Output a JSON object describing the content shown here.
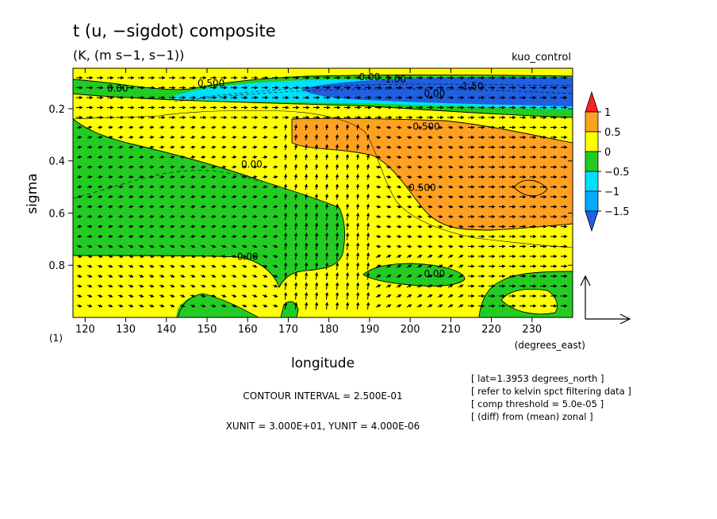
{
  "chart_data": {
    "type": "heatmap",
    "title": "t (u, −sigdot) composite",
    "subtitle": "(K, (m s−1, s−1))",
    "run_label": "kuo_control",
    "xlabel": "longitude",
    "xunits": "(degrees_east)",
    "ylabel": "sigma",
    "yunits": "(1)",
    "xlim": [
      117,
      240
    ],
    "ylim": [
      1.0,
      0.045
    ],
    "x_ticks": [
      120,
      130,
      140,
      150,
      160,
      170,
      180,
      190,
      200,
      210,
      220,
      230
    ],
    "y_ticks": [
      0.2,
      0.4,
      0.6,
      0.8
    ],
    "colorbar": {
      "levels": [
        -1.5,
        -1,
        -0.5,
        0,
        0.5,
        1
      ],
      "labels": [
        "1",
        "0.5",
        "0",
        "−0.5",
        "−1",
        "−1.5"
      ],
      "colors": [
        "#1f5fe0",
        "#00aaff",
        "#00e0ff",
        "#22cc22",
        "#ffff00",
        "#ffa020",
        "#ff2020"
      ]
    },
    "contour_labels": [
      {
        "text": "0.00",
        "x": 128,
        "y": 0.12
      },
      {
        "text": "0.500",
        "x": 151,
        "y": 0.1
      },
      {
        "text": "0.00",
        "x": 190,
        "y": 0.075
      },
      {
        "text": "-1.00",
        "x": 196,
        "y": 0.085
      },
      {
        "text": "-1.50",
        "x": 215,
        "y": 0.11
      },
      {
        "text": "0.00",
        "x": 206,
        "y": 0.14
      },
      {
        "text": "0.500",
        "x": 204,
        "y": 0.265
      },
      {
        "text": "0.00",
        "x": 161,
        "y": 0.41
      },
      {
        "text": "0.500",
        "x": 203,
        "y": 0.5
      },
      {
        "text": "0.00",
        "x": 160,
        "y": 0.765
      },
      {
        "text": "0.00",
        "x": 206,
        "y": 0.83
      }
    ],
    "contour_interval": "CONTOUR INTERVAL = 2.500E-01",
    "units_line": "XUNIT = 3.000E+01, YUNIT = 4.000E-06",
    "info_lines": [
      "[ lat=1.3953 degrees_north ]",
      "[ refer to kelvin spct filtering data ]",
      "[ comp threshold = 5.0e-05 ]",
      "[ (diff) from (mean) zonal ]"
    ],
    "grid": false
  }
}
